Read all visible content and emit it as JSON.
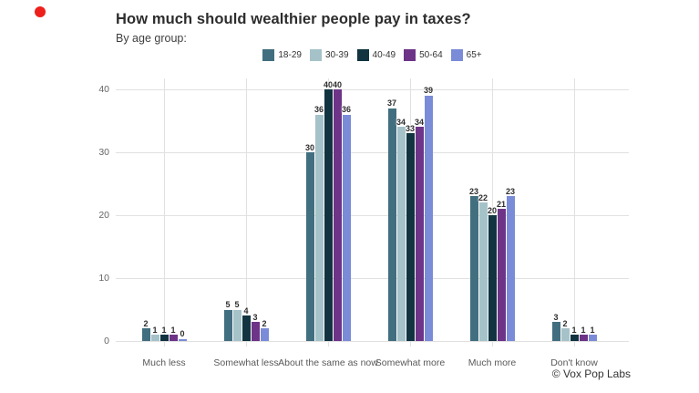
{
  "marker": {
    "color": "#ee201c"
  },
  "chart_data": {
    "type": "bar",
    "title": "How much should wealthier people pay in taxes?",
    "subtitle": "By age group:",
    "credit": "© Vox Pop Labs",
    "xlabel": "",
    "ylabel": "",
    "categories": [
      "Much less",
      "Somewhat less",
      "About the same as now",
      "Somewhat more",
      "Much more",
      "Don't know"
    ],
    "series": [
      {
        "name": "18-29",
        "color": "#426f80",
        "values": [
          2,
          5,
          30,
          37,
          23,
          3
        ]
      },
      {
        "name": "30-39",
        "color": "#a5c2c9",
        "values": [
          1,
          5,
          36,
          34,
          22,
          2
        ]
      },
      {
        "name": "40-49",
        "color": "#113440",
        "values": [
          1,
          4,
          40,
          33,
          20,
          1
        ]
      },
      {
        "name": "50-64",
        "color": "#6d3488",
        "values": [
          1,
          3,
          40,
          34,
          21,
          1
        ]
      },
      {
        "name": "65+",
        "color": "#7a8bd8",
        "values": [
          0,
          2,
          36,
          39,
          23,
          1
        ]
      }
    ],
    "yticks": [
      0,
      10,
      20,
      30,
      40
    ],
    "ylim": [
      0,
      42
    ],
    "grid": true,
    "legend_position": "top-center",
    "data_labels": true
  }
}
